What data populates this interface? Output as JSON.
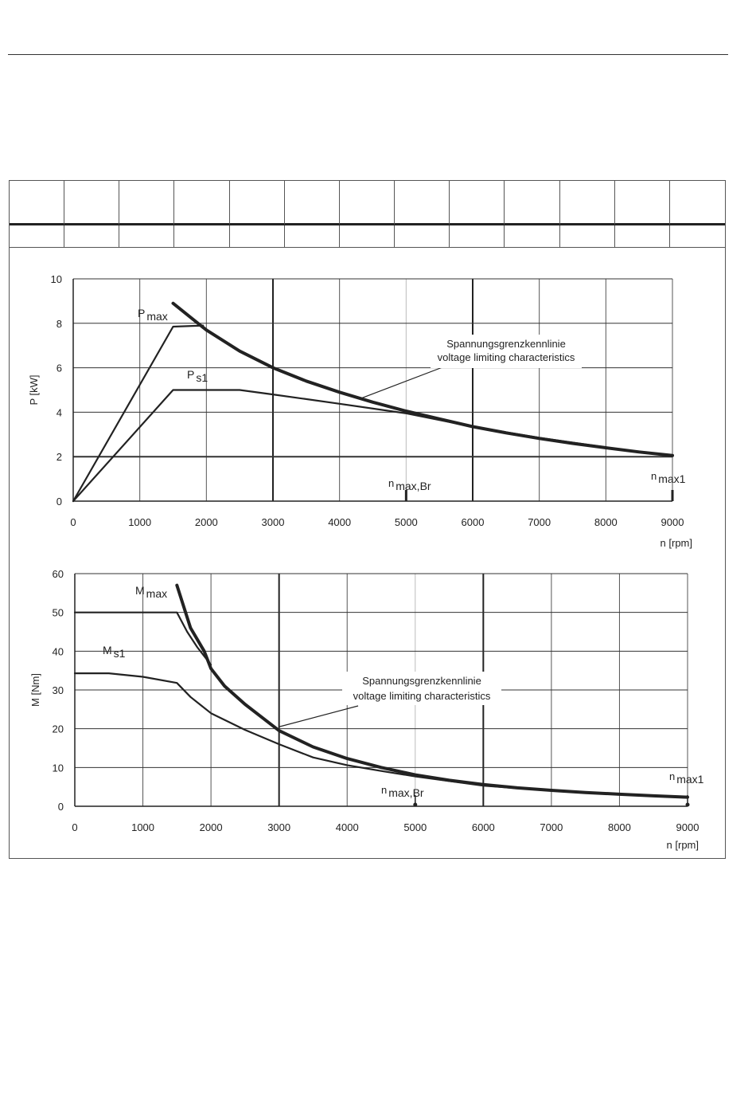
{
  "chart_data": [
    {
      "type": "line",
      "xlabel": "n [rpm]",
      "ylabel": "P [kW]",
      "xlim": [
        0,
        9000
      ],
      "ylim": [
        0,
        10
      ],
      "x_ticks": [
        "0",
        "1000",
        "2000",
        "3000",
        "4000",
        "5000",
        "6000",
        "7000",
        "8000",
        "9000"
      ],
      "y_ticks": [
        "0",
        "2",
        "4",
        "6",
        "8",
        "10"
      ],
      "grid": true,
      "series": [
        {
          "name": "P max",
          "label_main": "P",
          "label_sub": "max",
          "style": "thin",
          "points": [
            [
              0,
              0
            ],
            [
              1500,
              7.85
            ],
            [
              1950,
              7.9
            ]
          ]
        },
        {
          "name": "P s1",
          "label_main": "P",
          "label_sub": "s1",
          "style": "thin",
          "points": [
            [
              0,
              0
            ],
            [
              1500,
              5.0
            ],
            [
              2500,
              5.0
            ],
            [
              3000,
              4.8
            ],
            [
              4000,
              4.38
            ],
            [
              5000,
              3.95
            ],
            [
              6000,
              3.35
            ],
            [
              7000,
              2.85
            ],
            [
              8000,
              2.42
            ],
            [
              9000,
              2.02
            ]
          ]
        },
        {
          "name": "voltage limiting characteristics",
          "style": "bold",
          "points": [
            [
              1500,
              8.9
            ],
            [
              2000,
              7.7
            ],
            [
              2500,
              6.75
            ],
            [
              3000,
              6.0
            ],
            [
              3500,
              5.4
            ],
            [
              4000,
              4.9
            ],
            [
              4500,
              4.45
            ],
            [
              5000,
              4.05
            ],
            [
              5500,
              3.7
            ],
            [
              6000,
              3.35
            ],
            [
              6500,
              3.07
            ],
            [
              7000,
              2.82
            ],
            [
              7500,
              2.6
            ],
            [
              8000,
              2.4
            ],
            [
              8500,
              2.21
            ],
            [
              9000,
              2.05
            ]
          ]
        }
      ],
      "annotation": {
        "line1": "Spannungsgrenzkennlinie",
        "line2": "voltage limiting characteristics",
        "pointer": [
          4300,
          4.6
        ]
      },
      "markers": [
        {
          "main": "n",
          "sub": "max,Br",
          "x": 5000
        },
        {
          "main": "n",
          "sub": "max1",
          "x": 9000
        }
      ]
    },
    {
      "type": "line",
      "xlabel": "n [rpm]",
      "ylabel": "M [Nm]",
      "xlim": [
        0,
        9000
      ],
      "ylim": [
        0,
        60
      ],
      "x_ticks": [
        "0",
        "1000",
        "2000",
        "3000",
        "4000",
        "5000",
        "6000",
        "7000",
        "8000",
        "9000"
      ],
      "y_ticks": [
        "0",
        "10",
        "20",
        "30",
        "40",
        "50",
        "60"
      ],
      "grid": true,
      "series": [
        {
          "name": "M max",
          "label_main": "M",
          "label_sub": "max",
          "style": "thin",
          "points": [
            [
              0,
              50
            ],
            [
              1500,
              50
            ],
            [
              1650,
              45
            ],
            [
              1800,
              41
            ],
            [
              2000,
              36.5
            ]
          ]
        },
        {
          "name": "M s1",
          "label_main": "M",
          "label_sub": "s1",
          "style": "thin",
          "points": [
            [
              0,
              34.3
            ],
            [
              500,
              34.3
            ],
            [
              1000,
              33.4
            ],
            [
              1500,
              31.8
            ],
            [
              1700,
              28.2
            ],
            [
              2000,
              24
            ],
            [
              2500,
              19.7
            ],
            [
              3000,
              16
            ],
            [
              3500,
              12.6
            ],
            [
              4000,
              10.6
            ],
            [
              4500,
              9.1
            ],
            [
              5000,
              7.7
            ],
            [
              6000,
              5.3
            ],
            [
              7000,
              4.0
            ],
            [
              8000,
              3.0
            ],
            [
              9000,
              2.2
            ]
          ]
        },
        {
          "name": "voltage limiting characteristics",
          "style": "bold",
          "points": [
            [
              1500,
              57
            ],
            [
              1700,
              46
            ],
            [
              1900,
              40
            ],
            [
              2000,
              35.5
            ],
            [
              2200,
              31
            ],
            [
              2500,
              26.3
            ],
            [
              3000,
              19.5
            ],
            [
              3500,
              15.3
            ],
            [
              4000,
              12.3
            ],
            [
              4500,
              10.0
            ],
            [
              5000,
              8.1
            ],
            [
              5500,
              6.7
            ],
            [
              6000,
              5.6
            ],
            [
              6500,
              4.75
            ],
            [
              7000,
              4.1
            ],
            [
              7500,
              3.55
            ],
            [
              8000,
              3.1
            ],
            [
              8500,
              2.7
            ],
            [
              9000,
              2.35
            ]
          ]
        }
      ],
      "annotation": {
        "line1": "Spannungsgrenzkennlinie",
        "line2": "voltage limiting characteristics",
        "pointer": [
          3000,
          20.5
        ]
      },
      "markers": [
        {
          "main": "n",
          "sub": "max,Br",
          "x": 5000
        },
        {
          "main": "n",
          "sub": "max1",
          "x": 9000
        }
      ]
    }
  ]
}
